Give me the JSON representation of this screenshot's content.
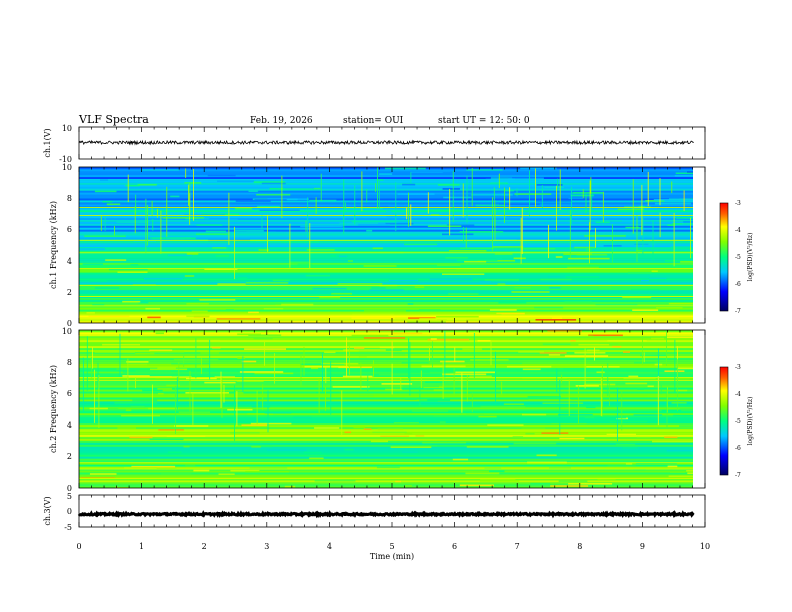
{
  "chart_data": {
    "type": "heatmap",
    "title": "VLF Spectra",
    "date": "Feb. 19, 2026",
    "station": "station= OUI",
    "start": "start  UT  =   12: 50: 0",
    "xlabel": "Time  (min)",
    "xlim": [
      0,
      10
    ],
    "xticks": [
      "0",
      "1",
      "2",
      "3",
      "4",
      "5",
      "6",
      "7",
      "8",
      "9",
      "10"
    ],
    "data_end_min": 9.82,
    "colors": {
      "low": "#000080",
      "mid": "#00c8ff",
      "high": "#ff0000",
      "line_waveform": "#000000"
    },
    "panels": [
      {
        "id": "ch1-waveform",
        "ylabel": "ch.1(V)",
        "ylim": [
          -10,
          10
        ],
        "yticks": [
          "10",
          "-10"
        ],
        "mean_level": 0.3,
        "noise_amplitude": 1.0
      },
      {
        "id": "ch1-spectrogram",
        "ylabel": "ch.1 Frequency (kHz)",
        "ylim": [
          0,
          10
        ],
        "yticks": [
          "0",
          "2",
          "4",
          "6",
          "8",
          "10"
        ],
        "colorbar": {
          "label": "log(PSD)(V²/Hz)",
          "ticks": [
            "-3",
            "-4",
            "-5",
            "-6",
            "-7"
          ],
          "range": [
            -7,
            -3
          ]
        },
        "band_intensity": [
          {
            "f_khz": 0.2,
            "level": 0.75
          },
          {
            "f_khz": 0.6,
            "level": 0.65
          },
          {
            "f_khz": 1.0,
            "level": 0.55
          },
          {
            "f_khz": 1.5,
            "level": 0.5
          },
          {
            "f_khz": 2.0,
            "level": 0.5
          },
          {
            "f_khz": 2.8,
            "level": 0.45
          },
          {
            "f_khz": 3.4,
            "level": 0.55
          },
          {
            "f_khz": 4.2,
            "level": 0.5
          },
          {
            "f_khz": 5.0,
            "level": 0.4
          },
          {
            "f_khz": 6.0,
            "level": 0.35
          },
          {
            "f_khz": 7.2,
            "level": 0.4
          },
          {
            "f_khz": 8.0,
            "level": 0.35
          },
          {
            "f_khz": 9.0,
            "level": 0.35
          },
          {
            "f_khz": 9.8,
            "level": 0.3
          }
        ],
        "tonal_lines_khz": [
          0.5,
          1.1,
          1.7,
          2.4,
          3.5,
          4.5,
          5.3,
          6.9,
          7.4
        ]
      },
      {
        "id": "ch2-spectrogram",
        "ylabel": "ch.2 Frequency (kHz)",
        "ylim": [
          0,
          10
        ],
        "yticks": [
          "0",
          "2",
          "4",
          "6",
          "8",
          "10"
        ],
        "colorbar": {
          "label": "log(PSD)(V²/Hz)",
          "ticks": [
            "-3",
            "-4",
            "-5",
            "-6",
            "-7"
          ],
          "range": [
            -7,
            -3
          ]
        },
        "band_intensity": [
          {
            "f_khz": 0.2,
            "level": 0.6
          },
          {
            "f_khz": 0.6,
            "level": 0.65
          },
          {
            "f_khz": 1.0,
            "level": 0.55
          },
          {
            "f_khz": 1.5,
            "level": 0.6
          },
          {
            "f_khz": 2.0,
            "level": 0.5
          },
          {
            "f_khz": 2.8,
            "level": 0.5
          },
          {
            "f_khz": 3.4,
            "level": 0.7
          },
          {
            "f_khz": 4.2,
            "level": 0.55
          },
          {
            "f_khz": 5.0,
            "level": 0.55
          },
          {
            "f_khz": 6.0,
            "level": 0.55
          },
          {
            "f_khz": 7.2,
            "level": 0.6
          },
          {
            "f_khz": 8.0,
            "level": 0.6
          },
          {
            "f_khz": 9.0,
            "level": 0.65
          },
          {
            "f_khz": 9.8,
            "level": 0.7
          }
        ],
        "tonal_lines_khz": [
          0.6,
          1.2,
          1.6,
          3.3,
          3.6,
          6.8,
          7.0
        ]
      },
      {
        "id": "ch3-waveform",
        "ylabel": "ch.3(V)",
        "ylim": [
          -5,
          5
        ],
        "yticks": [
          "5",
          "0",
          "-5"
        ],
        "mean_level": -1.0,
        "noise_amplitude": 0.25
      }
    ]
  }
}
